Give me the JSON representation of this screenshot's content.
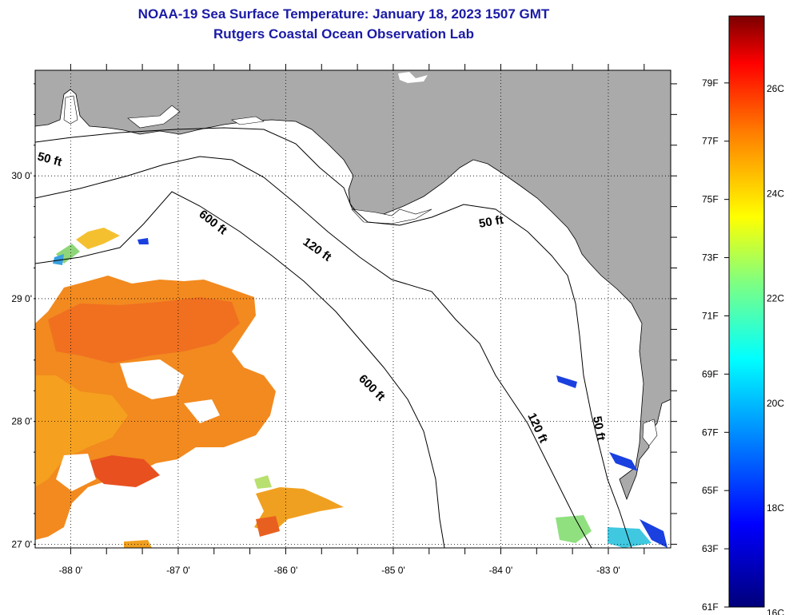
{
  "header": {
    "title": "NOAA-19 Sea Surface Temperature:  January 18, 2023 1507 GMT",
    "subtitle": "Rutgers Coastal Ocean Observation Lab"
  },
  "map": {
    "lon_range": [
      -88.33,
      -82.42
    ],
    "lat_range": [
      26.97,
      30.86
    ],
    "lon_ticks": [
      {
        "value": -88,
        "label": "-88 0'"
      },
      {
        "value": -87,
        "label": "-87 0'"
      },
      {
        "value": -86,
        "label": "-86 0'"
      },
      {
        "value": -85,
        "label": "-85 0'"
      },
      {
        "value": -84,
        "label": "-84 0'"
      },
      {
        "value": -83,
        "label": "-83 0'"
      }
    ],
    "lat_ticks": [
      {
        "value": 30,
        "label": "30 0'"
      },
      {
        "value": 29,
        "label": "29 0'"
      },
      {
        "value": 28,
        "label": "28 0'"
      },
      {
        "value": 27,
        "label": "27 0'"
      }
    ],
    "contour_labels": [
      "50 ft",
      "600 ft",
      "120 ft",
      "50 ft",
      "600 ft",
      "120 ft",
      "50 ft"
    ],
    "colors": {
      "land": "#aaaaaa",
      "ocean_no_data": "#ffffff",
      "grid": "#000000"
    }
  },
  "colorbar": {
    "fahrenheit_labels": [
      "79F",
      "77F",
      "75F",
      "73F",
      "71F",
      "69F",
      "67F",
      "65F",
      "63F",
      "61F"
    ],
    "celsius_labels": [
      "26C",
      "24C",
      "22C",
      "20C",
      "18C",
      "16C"
    ],
    "colors": [
      "#00007a",
      "#0000ff",
      "#0080ff",
      "#00ffff",
      "#80ff80",
      "#ffff00",
      "#ff8000",
      "#ff0000",
      "#7a0000"
    ]
  }
}
